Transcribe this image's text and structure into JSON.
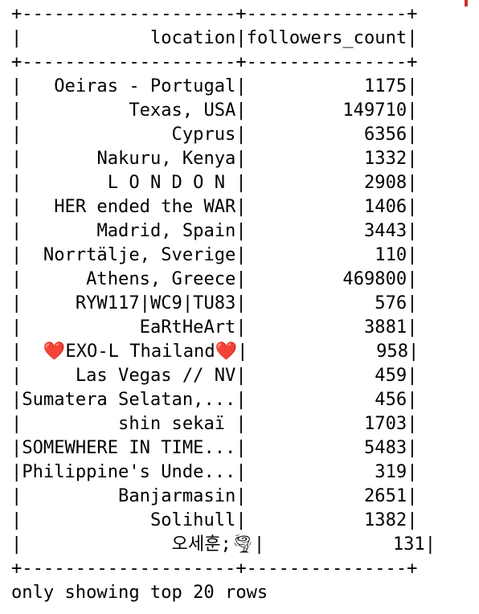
{
  "table": {
    "columns": [
      "location",
      "followers_count"
    ],
    "rows": [
      [
        "Oeiras - Portugal",
        "1175"
      ],
      [
        "Texas, USA",
        "149710"
      ],
      [
        "Cyprus",
        "6356"
      ],
      [
        "Nakuru, Kenya",
        "1332"
      ],
      [
        "L O N D O N ",
        "2908"
      ],
      [
        "HER ended the WAR",
        "1406"
      ],
      [
        "Madrid, Spain",
        "3443"
      ],
      [
        "Norrtälje, Sverige",
        "110"
      ],
      [
        "Athens, Greece",
        "469800"
      ],
      [
        "RYW117|WC9|TU83",
        "576"
      ],
      [
        "EaRtHeArt",
        "3881"
      ],
      [
        "❤️EXO-L Thailand❤️",
        "958"
      ],
      [
        "Las Vegas // NV",
        "459"
      ],
      [
        "Sumatera Selatan,...",
        "456"
      ],
      [
        "shin sekaï ",
        "1703"
      ],
      [
        "SOMEWHERE IN TIME...",
        "5483"
      ],
      [
        "Philippine's Unde...",
        "319"
      ],
      [
        "Banjarmasin",
        "2651"
      ],
      [
        "Solihull",
        "1382"
      ],
      [
        "오세훈;🌪",
        "131"
      ]
    ]
  },
  "footer": "only showing top 20 rows",
  "colors": {
    "text": "#000000",
    "background": "#ffffff",
    "accent_mark": "#c8322d"
  }
}
